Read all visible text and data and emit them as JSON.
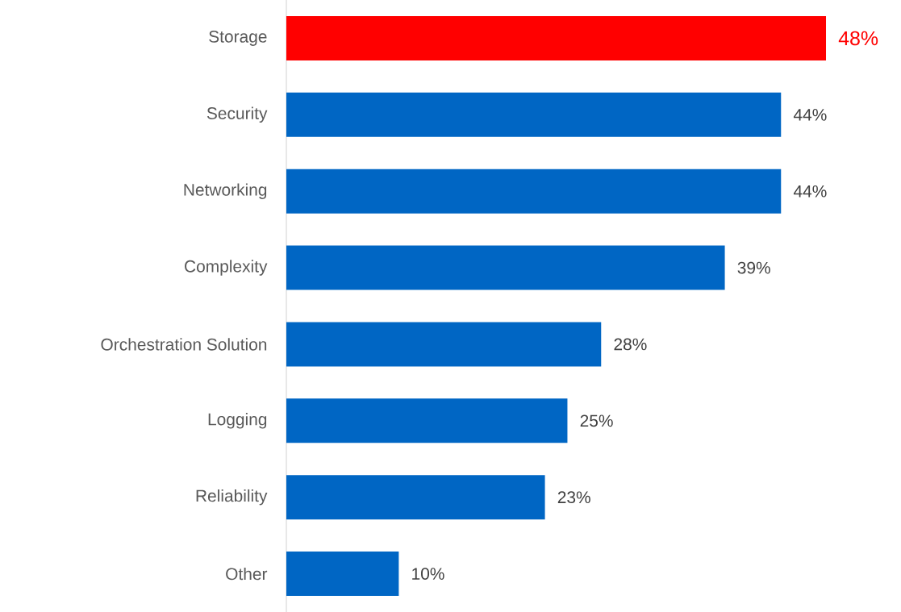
{
  "chart_data": {
    "type": "bar",
    "orientation": "horizontal",
    "categories": [
      "Storage",
      "Security",
      "Networking",
      "Complexity",
      "Orchestration Solution",
      "Logging",
      "Reliability",
      "Other"
    ],
    "values": [
      48,
      44,
      44,
      39,
      28,
      25,
      23,
      10
    ],
    "colors": [
      "#ff0000",
      "#0066c4",
      "#0066c4",
      "#0066c4",
      "#0066c4",
      "#0066c4",
      "#0066c4",
      "#0066c4"
    ],
    "value_labels": [
      "48%",
      "44%",
      "44%",
      "39%",
      "28%",
      "25%",
      "23%",
      "10%"
    ]
  }
}
